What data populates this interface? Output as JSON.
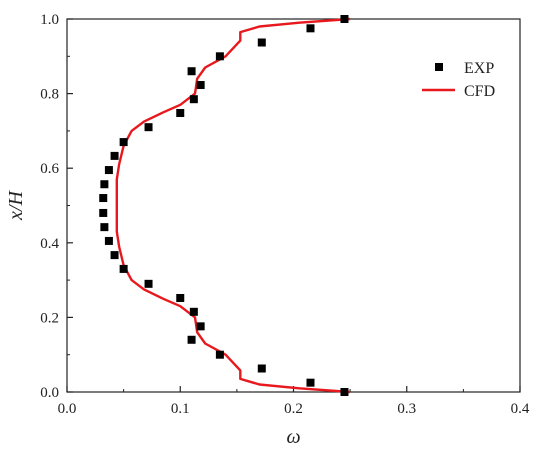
{
  "chart_data": {
    "type": "scatter",
    "xlabel": "ω",
    "ylabel": "x/H",
    "xlim": [
      0.0,
      0.4
    ],
    "ylim": [
      0.0,
      1.0
    ],
    "xticks": [
      "0.0",
      "0.1",
      "0.2",
      "0.3",
      "0.4"
    ],
    "yticks": [
      "0.0",
      "0.2",
      "0.4",
      "0.6",
      "0.8",
      "1.0"
    ],
    "grid": false,
    "legend_position": "top-right",
    "series": [
      {
        "name": "EXP",
        "kind": "scatter",
        "marker": "square",
        "color": "#000000",
        "points": [
          [
            0.245,
            0.0
          ],
          [
            0.215,
            0.025
          ],
          [
            0.172,
            0.063
          ],
          [
            0.135,
            0.1
          ],
          [
            0.11,
            0.14
          ],
          [
            0.118,
            0.176
          ],
          [
            0.112,
            0.215
          ],
          [
            0.1,
            0.252
          ],
          [
            0.072,
            0.29
          ],
          [
            0.05,
            0.33
          ],
          [
            0.042,
            0.367
          ],
          [
            0.037,
            0.405
          ],
          [
            0.033,
            0.442
          ],
          [
            0.032,
            0.48
          ],
          [
            0.032,
            0.52
          ],
          [
            0.033,
            0.557
          ],
          [
            0.037,
            0.595
          ],
          [
            0.042,
            0.633
          ],
          [
            0.05,
            0.67
          ],
          [
            0.072,
            0.71
          ],
          [
            0.1,
            0.748
          ],
          [
            0.112,
            0.785
          ],
          [
            0.118,
            0.823
          ],
          [
            0.11,
            0.86
          ],
          [
            0.135,
            0.9
          ],
          [
            0.172,
            0.937
          ],
          [
            0.215,
            0.975
          ],
          [
            0.245,
            1.0
          ]
        ]
      },
      {
        "name": "CFD",
        "kind": "line",
        "color": "#e8191e",
        "points": [
          [
            0.25,
            0.0
          ],
          [
            0.205,
            0.01
          ],
          [
            0.17,
            0.02
          ],
          [
            0.153,
            0.035
          ],
          [
            0.153,
            0.058
          ],
          [
            0.14,
            0.1
          ],
          [
            0.122,
            0.13
          ],
          [
            0.115,
            0.16
          ],
          [
            0.113,
            0.2
          ],
          [
            0.1,
            0.23
          ],
          [
            0.085,
            0.25
          ],
          [
            0.068,
            0.275
          ],
          [
            0.057,
            0.3
          ],
          [
            0.05,
            0.34
          ],
          [
            0.046,
            0.39
          ],
          [
            0.044,
            0.43
          ],
          [
            0.044,
            0.5
          ],
          [
            0.044,
            0.57
          ],
          [
            0.046,
            0.61
          ],
          [
            0.05,
            0.66
          ],
          [
            0.057,
            0.7
          ],
          [
            0.068,
            0.725
          ],
          [
            0.085,
            0.75
          ],
          [
            0.1,
            0.77
          ],
          [
            0.113,
            0.8
          ],
          [
            0.115,
            0.84
          ],
          [
            0.122,
            0.87
          ],
          [
            0.14,
            0.9
          ],
          [
            0.153,
            0.942
          ],
          [
            0.153,
            0.965
          ],
          [
            0.17,
            0.98
          ],
          [
            0.205,
            0.99
          ],
          [
            0.25,
            1.0
          ]
        ]
      }
    ]
  }
}
